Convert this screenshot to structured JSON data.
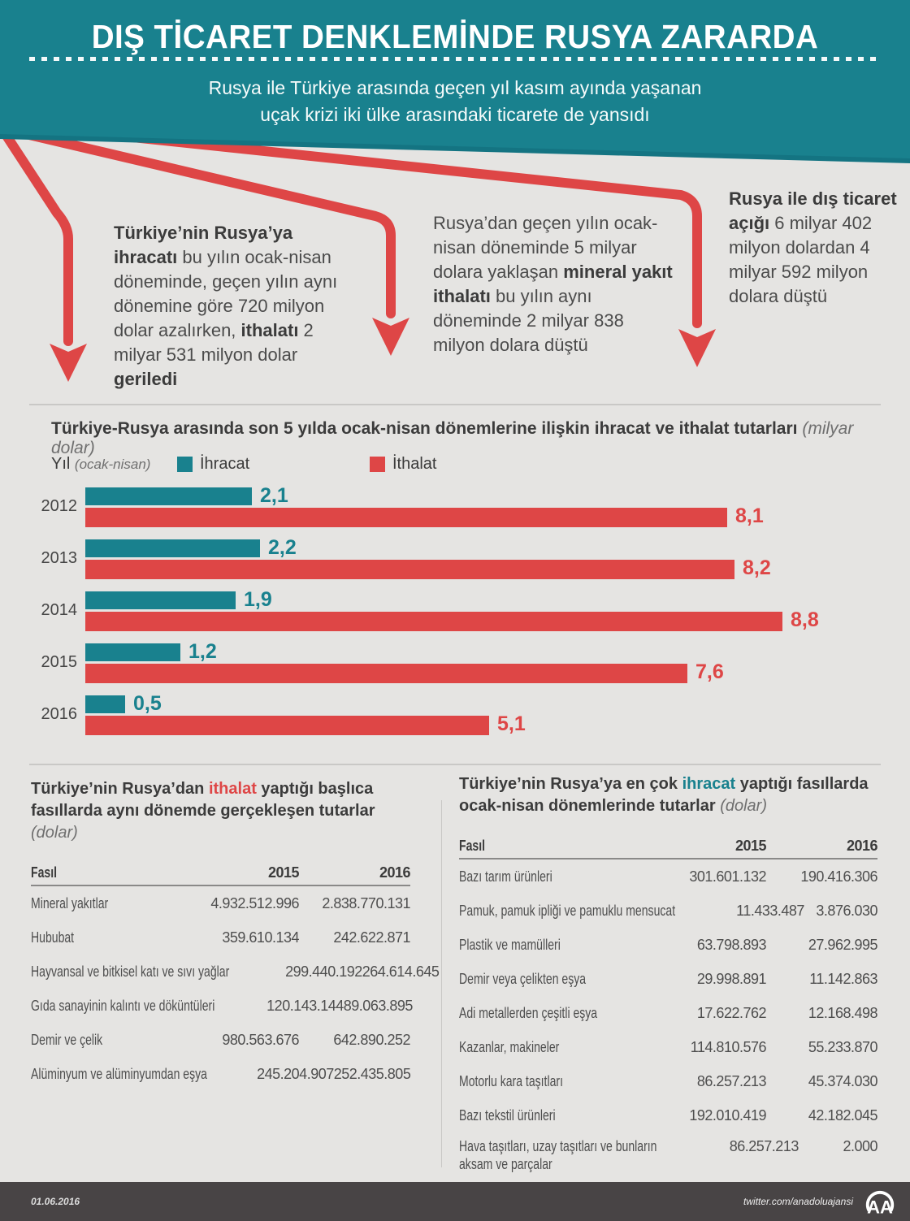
{
  "colors": {
    "teal": "#19818E",
    "teal_dark": "#147482",
    "red": "#DE4646",
    "background": "#E5E4E2",
    "footer": "#484445",
    "divider": "#C9C8C6"
  },
  "header": {
    "title": "DIŞ TİCARET DENKLEMİNDE RUSYA ZARARDA",
    "subtitle_line1": "Rusya ile Türkiye arasında geçen yıl kasım ayında yaşanan",
    "subtitle_line2": "uçak krizi iki ülke arasındaki ticarete de yansıdı"
  },
  "highlights": {
    "block1": {
      "segments": [
        {
          "text": "Türkiye’nin Rusya’ya ihracatı",
          "bold": true
        },
        {
          "text": " bu yılın ocak-nisan döneminde, geçen yılın aynı dönemine göre 720 milyon dolar azalırken, ",
          "bold": false
        },
        {
          "text": "ithalatı",
          "bold": true
        },
        {
          "text": " 2 milyar 531 milyon dolar ",
          "bold": false
        },
        {
          "text": "geriledi",
          "bold": true
        }
      ]
    },
    "block2": {
      "segments": [
        {
          "text": "Rusya’dan geçen yılın ocak-nisan döneminde 5 milyar dolara yaklaşan ",
          "bold": false
        },
        {
          "text": "mineral yakıt ithalatı",
          "bold": true
        },
        {
          "text": " bu yılın aynı döneminde 2 milyar 838 milyon dolara düştü",
          "bold": false
        }
      ]
    },
    "block3": {
      "segments": [
        {
          "text": "Rusya ile dış ticaret açığı",
          "bold": true
        },
        {
          "text": " 6 milyar 402 milyon dolardan 4 milyar 592 milyon dolara düştü",
          "bold": false
        }
      ]
    }
  },
  "chart": {
    "title": "Türkiye-Rusya arasında son 5 yılda ocak-nisan dönemlerine ilişkin ihracat ve ithalat tutarları",
    "unit_note": "(milyar dolar)",
    "axis_label": "Yıl",
    "axis_label_note": "(ocak-nisan)",
    "legend": [
      {
        "label": "İhracat",
        "color": "#19818E"
      },
      {
        "label": "İthalat",
        "color": "#DE4646"
      }
    ]
  },
  "chart_data": [
    {
      "type": "bar",
      "orientation": "horizontal",
      "title": "Türkiye-Rusya arasında son 5 yılda ocak-nisan dönemlerine ilişkin ihracat ve ithalat tutarları (milyar dolar)",
      "unit": "milyar dolar",
      "categories": [
        "2012",
        "2013",
        "2014",
        "2015",
        "2016"
      ],
      "series": [
        {
          "name": "İhracat",
          "color": "#19818E",
          "values": [
            2.1,
            2.2,
            1.9,
            1.2,
            0.5
          ],
          "labels": [
            "2,1",
            "2,2",
            "1,9",
            "1,2",
            "0,5"
          ]
        },
        {
          "name": "İthalat",
          "color": "#DE4646",
          "values": [
            8.1,
            8.2,
            8.8,
            7.6,
            5.1
          ],
          "labels": [
            "8,1",
            "8,2",
            "8,8",
            "7,6",
            "5,1"
          ]
        }
      ],
      "xlim": [
        0,
        9.3
      ],
      "grid": false,
      "legend_position": "top"
    },
    {
      "type": "table",
      "title": "Türkiye'nin Rusya'dan ithalat yaptığı başlıca fasıllarda aynı dönemde gerçekleşen tutarlar (dolar)",
      "columns": [
        "Fasıl",
        "2015",
        "2016"
      ],
      "rows": [
        [
          "Mineral yakıtlar",
          "4.932.512.996",
          "2.838.770.131"
        ],
        [
          "Hububat",
          "359.610.134",
          "242.622.871"
        ],
        [
          "Hayvansal ve bitkisel katı ve sıvı yağlar",
          "299.440.192",
          "264.614.645"
        ],
        [
          "Gıda sanayinin kalıntı ve döküntüleri",
          "120.143.144",
          "89.063.895"
        ],
        [
          "Demir ve çelik",
          "980.563.676",
          "642.890.252"
        ],
        [
          "Alüminyum ve alüminyumdan eşya",
          "245.204.907",
          "252.435.805"
        ]
      ]
    },
    {
      "type": "table",
      "title": "Türkiye'nin Rusya'ya en çok ihracat yaptığı fasıllarda ocak-nisan dönemlerinde tutarlar (dolar)",
      "columns": [
        "Fasıl",
        "2015",
        "2016"
      ],
      "rows": [
        [
          "Bazı tarım ürünleri",
          "301.601.132",
          "190.416.306"
        ],
        [
          "Pamuk, pamuk ipliği ve pamuklu mensucat",
          "11.433.487",
          "3.876.030"
        ],
        [
          "Plastik ve mamülleri",
          "63.798.893",
          "27.962.995"
        ],
        [
          "Demir veya çelikten eşya",
          "29.998.891",
          "11.142.863"
        ],
        [
          "Adi metallerden çeşitli eşya",
          "17.622.762",
          "12.168.498"
        ],
        [
          "Kazanlar, makineler",
          "114.810.576",
          "55.233.870"
        ],
        [
          "Motorlu kara taşıtları",
          "86.257.213",
          "45.374.030"
        ],
        [
          "Bazı tekstil ürünleri",
          "192.010.419",
          "42.182.045"
        ],
        [
          "Hava taşıtları, uzay taşıtları ve bunların aksam ve parçalar",
          "86.257.213",
          "2.000"
        ]
      ]
    }
  ],
  "tables": {
    "left": {
      "title_prefix": "Türkiye’nin Rusya’dan ",
      "highlight": "ithalat",
      "title_suffix": " yaptığı başlıca fasıllarda aynı dönemde gerçekleşen tutarlar ",
      "note": "(dolar)",
      "headers": [
        "Fasıl",
        "2015",
        "2016"
      ]
    },
    "right": {
      "title_prefix": "Türkiye’nin Rusya’ya en çok ",
      "highlight": "ihracat",
      "title_suffix": " yaptığı fasıllarda ocak-nisan dönemlerinde tutarlar ",
      "note": "(dolar)",
      "headers": [
        "Fasıl",
        "2015",
        "2016"
      ]
    }
  },
  "footer": {
    "date": "01.06.2016",
    "handle": "twitter.com/anadoluajansi",
    "logo_text": "AA"
  }
}
